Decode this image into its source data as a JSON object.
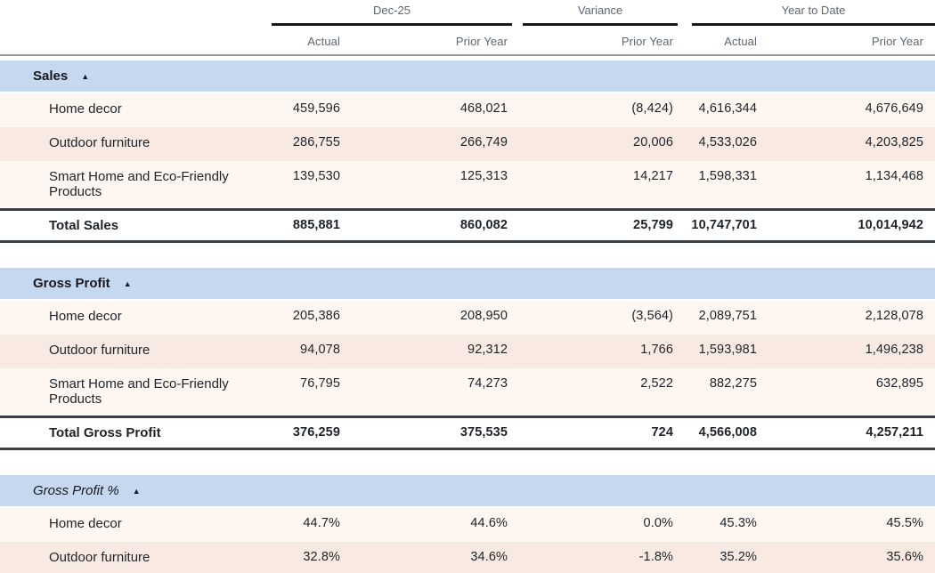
{
  "table": {
    "column_groups": [
      {
        "label": "Dec-25"
      },
      {
        "label": "Variance"
      },
      {
        "label": "Year to Date"
      }
    ],
    "column_headers": [
      "Actual",
      "Prior Year",
      "Prior Year",
      "Actual",
      "Prior Year"
    ],
    "collapse_icon": "▲",
    "sections": [
      {
        "title": "Sales",
        "rows": [
          {
            "label": "Home decor",
            "values": [
              "459,596",
              "468,021",
              "(8,424)",
              "4,616,344",
              "4,676,649"
            ]
          },
          {
            "label": "Outdoor furniture",
            "values": [
              "286,755",
              "266,749",
              "20,006",
              "4,533,026",
              "4,203,825"
            ]
          },
          {
            "label": "Smart Home and Eco-Friendly Products",
            "values": [
              "139,530",
              "125,313",
              "14,217",
              "1,598,331",
              "1,134,468"
            ]
          }
        ],
        "total": {
          "label": "Total Sales",
          "values": [
            "885,881",
            "860,082",
            "25,799",
            "10,747,701",
            "10,014,942"
          ]
        }
      },
      {
        "title": "Gross Profit",
        "rows": [
          {
            "label": "Home decor",
            "values": [
              "205,386",
              "208,950",
              "(3,564)",
              "2,089,751",
              "2,128,078"
            ]
          },
          {
            "label": "Outdoor furniture",
            "values": [
              "94,078",
              "92,312",
              "1,766",
              "1,593,981",
              "1,496,238"
            ]
          },
          {
            "label": "Smart Home and Eco-Friendly Products",
            "values": [
              "76,795",
              "74,273",
              "2,522",
              "882,275",
              "632,895"
            ]
          }
        ],
        "total": {
          "label": "Total Gross Profit",
          "values": [
            "376,259",
            "375,535",
            "724",
            "4,566,008",
            "4,257,211"
          ]
        }
      },
      {
        "title": "Gross Profit %",
        "rows": [
          {
            "label": "Home decor",
            "values": [
              "44.7%",
              "44.6%",
              "0.0%",
              "45.3%",
              "45.5%"
            ]
          },
          {
            "label": "Outdoor furniture",
            "values": [
              "32.8%",
              "34.6%",
              "-1.8%",
              "35.2%",
              "35.6%"
            ]
          }
        ]
      }
    ],
    "colors": {
      "section_band": "#c6d8f0",
      "row_cream": "#fdf6f1",
      "row_pink": "#f8eae3",
      "total_border": "#3a3f47",
      "header_rule": "#97999e",
      "group_underline": "#16181d",
      "header_text": "#5f6570",
      "body_text": "#1f2328"
    }
  }
}
